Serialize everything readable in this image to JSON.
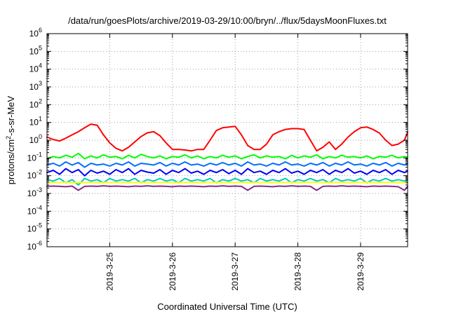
{
  "chart_data": {
    "type": "line",
    "title": "/data/run/goesPlots/archive/2019-03-29/10:00/bryn/../flux/5daysMoonFluxes.txt",
    "xlabel": "Coordinated Universal Time (UTC)",
    "ylabel": "protons/cm²-s-sr-MeV",
    "ylabel_parts": {
      "pre": "protons/cm",
      "sup": "2",
      "post": "-s-sr-MeV"
    },
    "yscale": "log",
    "ylim": [
      1e-06,
      1000000.0
    ],
    "xlim": [
      0,
      5.75
    ],
    "grid": true,
    "legend": "none",
    "y_ticks": [
      {
        "value": 1e-06,
        "base": "10",
        "exp": "-6"
      },
      {
        "value": 1e-05,
        "base": "10",
        "exp": "-5"
      },
      {
        "value": 0.0001,
        "base": "10",
        "exp": "-4"
      },
      {
        "value": 0.001,
        "base": "10",
        "exp": "-3"
      },
      {
        "value": 0.01,
        "base": "10",
        "exp": "-2"
      },
      {
        "value": 0.1,
        "base": "10",
        "exp": "-1"
      },
      {
        "value": 1,
        "base": "10",
        "exp": "0"
      },
      {
        "value": 10,
        "base": "10",
        "exp": "1"
      },
      {
        "value": 100,
        "base": "10",
        "exp": "2"
      },
      {
        "value": 1000,
        "base": "10",
        "exp": "3"
      },
      {
        "value": 10000,
        "base": "10",
        "exp": "4"
      },
      {
        "value": 100000,
        "base": "10",
        "exp": "5"
      },
      {
        "value": 1000000,
        "base": "10",
        "exp": "6"
      }
    ],
    "x_ticks": [
      {
        "value": 1,
        "label": "2019-3-25"
      },
      {
        "value": 2,
        "label": "2019-3-26"
      },
      {
        "value": 3,
        "label": "2019-3-27"
      },
      {
        "value": 4,
        "label": "2019-3-28"
      },
      {
        "value": 5,
        "label": "2019-3-29"
      }
    ],
    "series": [
      {
        "color": "#ff0000",
        "x": [
          0,
          0.1,
          0.2,
          0.3,
          0.4,
          0.5,
          0.6,
          0.7,
          0.8,
          0.9,
          1.0,
          1.1,
          1.2,
          1.3,
          1.4,
          1.5,
          1.6,
          1.7,
          1.8,
          1.9,
          2.0,
          2.1,
          2.2,
          2.3,
          2.4,
          2.5,
          2.6,
          2.7,
          2.8,
          2.9,
          3.0,
          3.1,
          3.2,
          3.3,
          3.4,
          3.5,
          3.6,
          3.7,
          3.8,
          3.9,
          4.0,
          4.1,
          4.2,
          4.3,
          4.4,
          4.5,
          4.6,
          4.7,
          4.8,
          4.9,
          5.0,
          5.1,
          5.2,
          5.3,
          5.4,
          5.5,
          5.6,
          5.7,
          5.75
        ],
        "y": [
          1.5,
          1.1,
          0.9,
          1.3,
          2.0,
          3.0,
          5.0,
          8.0,
          7.0,
          2.0,
          0.7,
          0.35,
          0.25,
          0.4,
          0.8,
          1.6,
          2.6,
          3.0,
          1.8,
          0.7,
          0.3,
          0.3,
          0.28,
          0.25,
          0.3,
          0.3,
          1.0,
          3.5,
          5.0,
          5.5,
          6.0,
          2.0,
          0.5,
          0.3,
          0.3,
          0.6,
          2.0,
          3.0,
          4.0,
          4.5,
          4.5,
          4.0,
          1.0,
          0.25,
          0.4,
          0.8,
          0.3,
          0.6,
          1.5,
          3.0,
          5.0,
          5.5,
          4.0,
          2.5,
          1.0,
          0.5,
          0.6,
          1.0,
          2.8
        ]
      },
      {
        "color": "#00ff00",
        "x": [
          0,
          0.1,
          0.2,
          0.3,
          0.4,
          0.5,
          0.6,
          0.7,
          0.8,
          0.9,
          1.0,
          1.1,
          1.2,
          1.3,
          1.4,
          1.5,
          1.6,
          1.7,
          1.8,
          1.9,
          2.0,
          2.1,
          2.2,
          2.3,
          2.4,
          2.5,
          2.6,
          2.7,
          2.8,
          2.9,
          3.0,
          3.1,
          3.2,
          3.3,
          3.4,
          3.5,
          3.6,
          3.7,
          3.8,
          3.9,
          4.0,
          4.1,
          4.2,
          4.3,
          4.4,
          4.5,
          4.6,
          4.7,
          4.8,
          4.9,
          5.0,
          5.1,
          5.2,
          5.3,
          5.4,
          5.5,
          5.6,
          5.7,
          5.75
        ],
        "y": [
          0.09,
          0.12,
          0.1,
          0.14,
          0.11,
          0.18,
          0.09,
          0.13,
          0.1,
          0.15,
          0.11,
          0.12,
          0.09,
          0.14,
          0.1,
          0.16,
          0.12,
          0.1,
          0.13,
          0.09,
          0.12,
          0.11,
          0.15,
          0.1,
          0.13,
          0.09,
          0.12,
          0.1,
          0.14,
          0.11,
          0.13,
          0.09,
          0.12,
          0.15,
          0.1,
          0.13,
          0.11,
          0.12,
          0.09,
          0.14,
          0.1,
          0.13,
          0.11,
          0.15,
          0.09,
          0.12,
          0.1,
          0.14,
          0.11,
          0.12,
          0.1,
          0.13,
          0.09,
          0.12,
          0.11,
          0.14,
          0.1,
          0.12,
          0.11
        ]
      },
      {
        "color": "#00c8c8",
        "x": [
          0,
          0.1,
          0.2,
          0.3,
          0.4,
          0.5,
          0.6,
          0.7,
          0.8,
          0.9,
          1.0,
          1.1,
          1.2,
          1.3,
          1.4,
          1.5,
          1.6,
          1.7,
          1.8,
          1.9,
          2.0,
          2.1,
          2.2,
          2.3,
          2.4,
          2.5,
          2.6,
          2.7,
          2.8,
          2.9,
          3.0,
          3.1,
          3.2,
          3.3,
          3.4,
          3.5,
          3.6,
          3.7,
          3.8,
          3.9,
          4.0,
          4.1,
          4.2,
          4.3,
          4.4,
          4.5,
          4.6,
          4.7,
          4.8,
          4.9,
          5.0,
          5.1,
          5.2,
          5.3,
          5.4,
          5.5,
          5.6,
          5.7,
          5.75
        ],
        "y": [
          0.006,
          0.005,
          0.007,
          0.004,
          0.006,
          0.003,
          0.007,
          0.005,
          0.006,
          0.004,
          0.007,
          0.005,
          0.006,
          0.005,
          0.007,
          0.004,
          0.006,
          0.005,
          0.007,
          0.005,
          0.006,
          0.004,
          0.007,
          0.005,
          0.006,
          0.005,
          0.007,
          0.004,
          0.006,
          0.005,
          0.007,
          0.005,
          0.006,
          0.004,
          0.007,
          0.005,
          0.006,
          0.005,
          0.007,
          0.004,
          0.006,
          0.005,
          0.007,
          0.005,
          0.006,
          0.004,
          0.007,
          0.005,
          0.006,
          0.005,
          0.007,
          0.004,
          0.006,
          0.005,
          0.007,
          0.005,
          0.006,
          0.005,
          0.006
        ]
      },
      {
        "color": "#0070ff",
        "x": [
          0,
          0.1,
          0.2,
          0.3,
          0.4,
          0.5,
          0.6,
          0.7,
          0.8,
          0.9,
          1.0,
          1.1,
          1.2,
          1.3,
          1.4,
          1.5,
          1.6,
          1.7,
          1.8,
          1.9,
          2.0,
          2.1,
          2.2,
          2.3,
          2.4,
          2.5,
          2.6,
          2.7,
          2.8,
          2.9,
          3.0,
          3.1,
          3.2,
          3.3,
          3.4,
          3.5,
          3.6,
          3.7,
          3.8,
          3.9,
          4.0,
          4.1,
          4.2,
          4.3,
          4.4,
          4.5,
          4.6,
          4.7,
          4.8,
          4.9,
          5.0,
          5.1,
          5.2,
          5.3,
          5.4,
          5.5,
          5.6,
          5.7,
          5.75
        ],
        "y": [
          0.04,
          0.05,
          0.035,
          0.06,
          0.04,
          0.055,
          0.03,
          0.05,
          0.04,
          0.045,
          0.035,
          0.05,
          0.04,
          0.06,
          0.035,
          0.05,
          0.045,
          0.04,
          0.055,
          0.035,
          0.05,
          0.04,
          0.06,
          0.04,
          0.045,
          0.035,
          0.05,
          0.04,
          0.055,
          0.04,
          0.05,
          0.035,
          0.06,
          0.04,
          0.045,
          0.035,
          0.05,
          0.04,
          0.06,
          0.04,
          0.045,
          0.035,
          0.05,
          0.04,
          0.055,
          0.035,
          0.05,
          0.04,
          0.06,
          0.04,
          0.045,
          0.035,
          0.05,
          0.04,
          0.055,
          0.035,
          0.05,
          0.04,
          0.05
        ]
      },
      {
        "color": "#0000ff",
        "x": [
          0,
          0.1,
          0.2,
          0.3,
          0.4,
          0.5,
          0.6,
          0.7,
          0.8,
          0.9,
          1.0,
          1.1,
          1.2,
          1.3,
          1.4,
          1.5,
          1.6,
          1.7,
          1.8,
          1.9,
          2.0,
          2.1,
          2.2,
          2.3,
          2.4,
          2.5,
          2.6,
          2.7,
          2.8,
          2.9,
          3.0,
          3.1,
          3.2,
          3.3,
          3.4,
          3.5,
          3.6,
          3.7,
          3.8,
          3.9,
          4.0,
          4.1,
          4.2,
          4.3,
          4.4,
          4.5,
          4.6,
          4.7,
          4.8,
          4.9,
          5.0,
          5.1,
          5.2,
          5.3,
          5.4,
          5.5,
          5.6,
          5.7,
          5.75
        ],
        "y": [
          0.015,
          0.02,
          0.012,
          0.025,
          0.015,
          0.022,
          0.01,
          0.02,
          0.014,
          0.018,
          0.012,
          0.022,
          0.015,
          0.025,
          0.012,
          0.02,
          0.016,
          0.014,
          0.022,
          0.012,
          0.02,
          0.015,
          0.025,
          0.014,
          0.018,
          0.012,
          0.02,
          0.015,
          0.022,
          0.013,
          0.02,
          0.012,
          0.025,
          0.015,
          0.018,
          0.012,
          0.02,
          0.015,
          0.025,
          0.014,
          0.018,
          0.012,
          0.02,
          0.015,
          0.022,
          0.012,
          0.02,
          0.015,
          0.025,
          0.014,
          0.018,
          0.012,
          0.02,
          0.015,
          0.022,
          0.012,
          0.02,
          0.015,
          0.018
        ]
      },
      {
        "color": "#ffff00",
        "x": [
          0,
          0.1,
          0.2,
          0.3,
          0.4,
          0.5,
          0.6,
          0.7,
          0.8,
          0.9,
          1.0,
          1.1,
          1.2,
          1.3,
          1.4,
          1.5,
          1.6,
          1.7,
          1.8,
          1.9,
          2.0,
          2.1,
          2.2,
          2.3,
          2.4,
          2.5,
          2.6,
          2.7,
          2.8,
          2.9,
          3.0,
          3.1,
          3.2,
          3.3,
          3.4,
          3.5,
          3.6,
          3.7,
          3.8,
          3.9,
          4.0,
          4.1,
          4.2,
          4.3,
          4.4,
          4.5,
          4.6,
          4.7,
          4.8,
          4.9,
          5.0,
          5.1,
          5.2,
          5.3,
          5.4,
          5.5,
          5.6,
          5.7,
          5.75
        ],
        "y": [
          0.004,
          0.0042,
          0.0041,
          0.0043,
          0.004,
          0.0042,
          0.0041,
          0.0043,
          0.004,
          0.0042,
          0.0041,
          0.0043,
          0.004,
          0.0042,
          0.0041,
          0.0043,
          0.004,
          0.0042,
          0.0041,
          0.0043,
          0.004,
          0.0042,
          0.0041,
          0.0043,
          0.004,
          0.0042,
          0.0041,
          0.0043,
          0.004,
          0.0042,
          0.0041,
          0.0043,
          0.004,
          0.0042,
          0.0041,
          0.0043,
          0.004,
          0.0042,
          0.0041,
          0.0043,
          0.004,
          0.0042,
          0.0041,
          0.0043,
          0.004,
          0.0042,
          0.0041,
          0.0043,
          0.004,
          0.0042,
          0.0041,
          0.0043,
          0.004,
          0.0042,
          0.0041,
          0.0043,
          0.004,
          0.0042,
          0.0041
        ]
      },
      {
        "color": "#8a2a8a",
        "x": [
          0,
          0.1,
          0.2,
          0.3,
          0.4,
          0.5,
          0.6,
          0.7,
          0.8,
          0.9,
          1.0,
          1.1,
          1.2,
          1.3,
          1.4,
          1.5,
          1.6,
          1.7,
          1.8,
          1.9,
          2.0,
          2.1,
          2.2,
          2.3,
          2.4,
          2.5,
          2.6,
          2.7,
          2.8,
          2.9,
          3.0,
          3.1,
          3.2,
          3.3,
          3.4,
          3.5,
          3.6,
          3.7,
          3.8,
          3.9,
          4.0,
          4.1,
          4.2,
          4.3,
          4.4,
          4.5,
          4.6,
          4.7,
          4.8,
          4.9,
          5.0,
          5.1,
          5.2,
          5.3,
          5.4,
          5.5,
          5.6,
          5.7,
          5.75
        ],
        "y": [
          0.0025,
          0.0026,
          0.0025,
          0.0024,
          0.0026,
          0.0015,
          0.0025,
          0.0026,
          0.0025,
          0.0027,
          0.0025,
          0.0026,
          0.0025,
          0.0024,
          0.0026,
          0.0025,
          0.0027,
          0.0025,
          0.0026,
          0.0025,
          0.0024,
          0.0026,
          0.0025,
          0.0026,
          0.0025,
          0.0024,
          0.0026,
          0.0025,
          0.0027,
          0.0025,
          0.0026,
          0.0025,
          0.0015,
          0.0025,
          0.0026,
          0.0025,
          0.0024,
          0.0026,
          0.0025,
          0.0027,
          0.0025,
          0.0026,
          0.0025,
          0.0015,
          0.0025,
          0.0026,
          0.0025,
          0.0027,
          0.0025,
          0.0026,
          0.0025,
          0.0024,
          0.0026,
          0.0025,
          0.0026,
          0.0025,
          0.0024,
          0.0015,
          0.0025
        ]
      }
    ]
  }
}
